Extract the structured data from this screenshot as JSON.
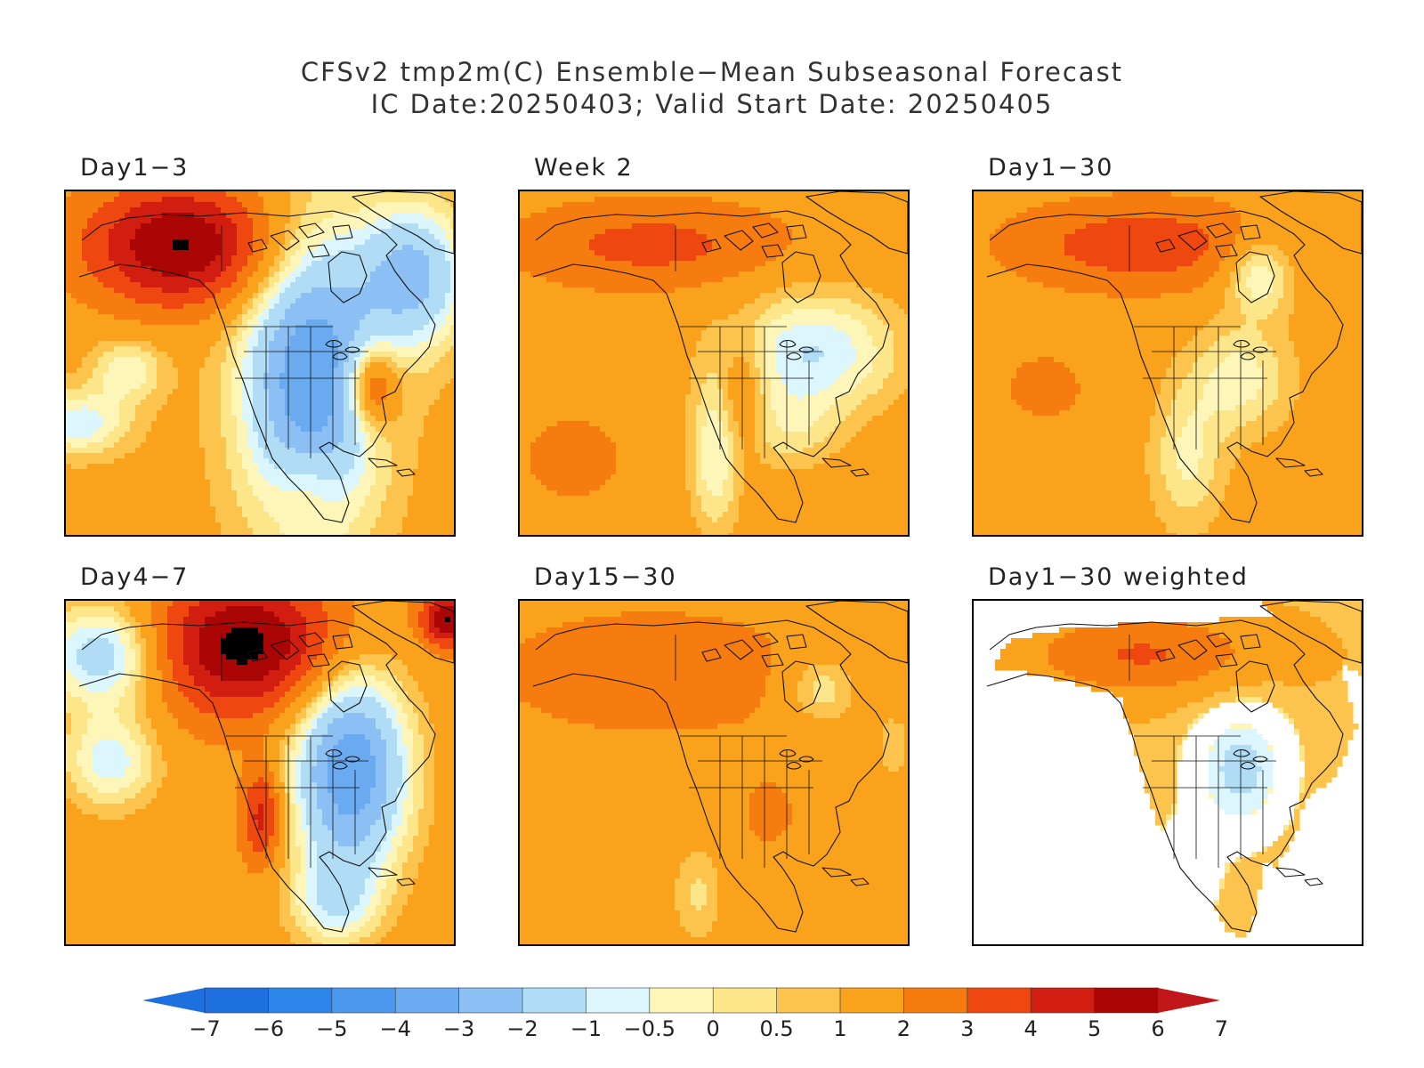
{
  "title": {
    "line1": "CFSv2 tmp2m(C) Ensemble−Mean Subseasonal Forecast",
    "line2": "IC Date:20250403; Valid Start Date: 20250405"
  },
  "panels": [
    {
      "label": "Day1−3",
      "mode": "d13"
    },
    {
      "label": "Week 2",
      "mode": "w2"
    },
    {
      "label": "Day1−30",
      "mode": "d130"
    },
    {
      "label": "Day4−7",
      "mode": "d47"
    },
    {
      "label": "Day15−30",
      "mode": "d1530"
    },
    {
      "label": "Day1−30 weighted",
      "mode": "weighted"
    }
  ],
  "colorbar": {
    "labels": [
      "−7",
      "−6",
      "−5",
      "−4",
      "−3",
      "−2",
      "−1",
      "−0.5",
      "0",
      "0.5",
      "1",
      "2",
      "3",
      "4",
      "5",
      "6",
      "7"
    ],
    "colors": [
      "#1e6fe0",
      "#2f86ea",
      "#4b98ee",
      "#6aaaf0",
      "#8cc0f4",
      "#b0dcf6",
      "#dcf6fd",
      "#fdf6b8",
      "#fde58a",
      "#fcc44c",
      "#faa21c",
      "#f77c10",
      "#ee4810",
      "#d21e10",
      "#aa0606"
    ],
    "low_arrow_color": "#1e6fe0",
    "high_arrow_color": "#c0161a"
  }
}
